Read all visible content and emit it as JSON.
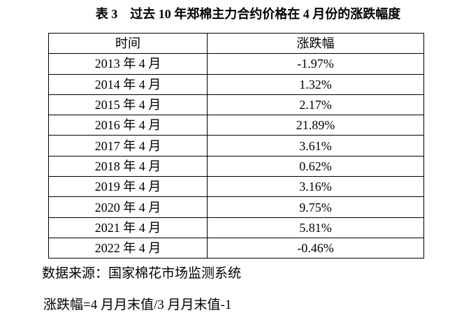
{
  "header": {
    "label": "表 3",
    "title": "过去 10 年郑棉主力合约价格在 4 月份的涨跌幅度"
  },
  "table": {
    "columns": [
      "时间",
      "涨跌幅"
    ],
    "rows": [
      [
        "2013 年 4 月",
        "-1.97%"
      ],
      [
        "2014 年 4 月",
        "1.32%"
      ],
      [
        "2015 年 4 月",
        "2.17%"
      ],
      [
        "2016 年 4 月",
        "21.89%"
      ],
      [
        "2017 年 4 月",
        "3.61%"
      ],
      [
        "2018 年 4 月",
        "0.62%"
      ],
      [
        "2019 年 4 月",
        "3.16%"
      ],
      [
        "2020 年 4 月",
        "9.75%"
      ],
      [
        "2021 年 4 月",
        "5.81%"
      ],
      [
        "2022 年 4 月",
        "-0.46%"
      ]
    ]
  },
  "notes": {
    "source": "数据来源：国家棉花市场监测系统",
    "formula": "涨跌幅=4 月月末值/3 月月末值-1"
  }
}
